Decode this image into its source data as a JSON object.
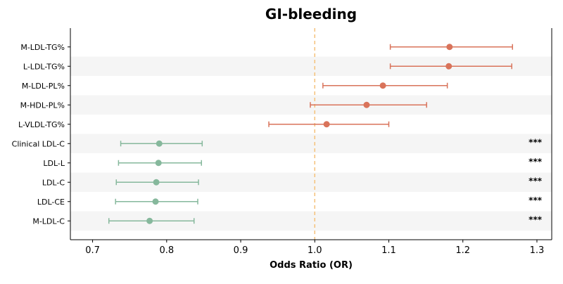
{
  "chart_data": {
    "type": "forest",
    "title": "GI-bleeding",
    "xlabel": "Odds Ratio (OR)",
    "ylabel": "",
    "xlim": [
      0.67,
      1.32
    ],
    "xticks": [
      0.7,
      0.8,
      0.9,
      1.0,
      1.1,
      1.2,
      1.3
    ],
    "xtick_labels": [
      "0.7",
      "0.8",
      "0.9",
      "1.0",
      "1.1",
      "1.2",
      "1.3"
    ],
    "reference_line": 1.0,
    "grid": false,
    "alternating_row_shading": true,
    "colors": {
      "positive": "#d9735a",
      "negative": "#86b89c",
      "reference_line": "#f5c27a",
      "row_shade": "#f5f5f5"
    },
    "rows": [
      {
        "label": "M-LDL-TG%",
        "or": 1.182,
        "ci_low": 1.102,
        "ci_high": 1.267,
        "direction": "positive",
        "significance": ""
      },
      {
        "label": "L-LDL-TG%",
        "or": 1.181,
        "ci_low": 1.102,
        "ci_high": 1.266,
        "direction": "positive",
        "significance": ""
      },
      {
        "label": "M-LDL-PL%",
        "or": 1.092,
        "ci_low": 1.011,
        "ci_high": 1.179,
        "direction": "positive",
        "significance": ""
      },
      {
        "label": "M-HDL-PL%",
        "or": 1.07,
        "ci_low": 0.994,
        "ci_high": 1.151,
        "direction": "positive",
        "significance": ""
      },
      {
        "label": "L-VLDL-TG%",
        "or": 1.016,
        "ci_low": 0.938,
        "ci_high": 1.1,
        "direction": "positive",
        "significance": ""
      },
      {
        "label": "Clinical LDL-C",
        "or": 0.79,
        "ci_low": 0.738,
        "ci_high": 0.848,
        "direction": "negative",
        "significance": "***"
      },
      {
        "label": "LDL-L",
        "or": 0.789,
        "ci_low": 0.735,
        "ci_high": 0.847,
        "direction": "negative",
        "significance": "***"
      },
      {
        "label": "LDL-C",
        "or": 0.786,
        "ci_low": 0.732,
        "ci_high": 0.843,
        "direction": "negative",
        "significance": "***"
      },
      {
        "label": "LDL-CE",
        "or": 0.785,
        "ci_low": 0.731,
        "ci_high": 0.842,
        "direction": "negative",
        "significance": "***"
      },
      {
        "label": "M-LDL-C",
        "or": 0.777,
        "ci_low": 0.722,
        "ci_high": 0.837,
        "direction": "negative",
        "significance": "***"
      }
    ]
  }
}
